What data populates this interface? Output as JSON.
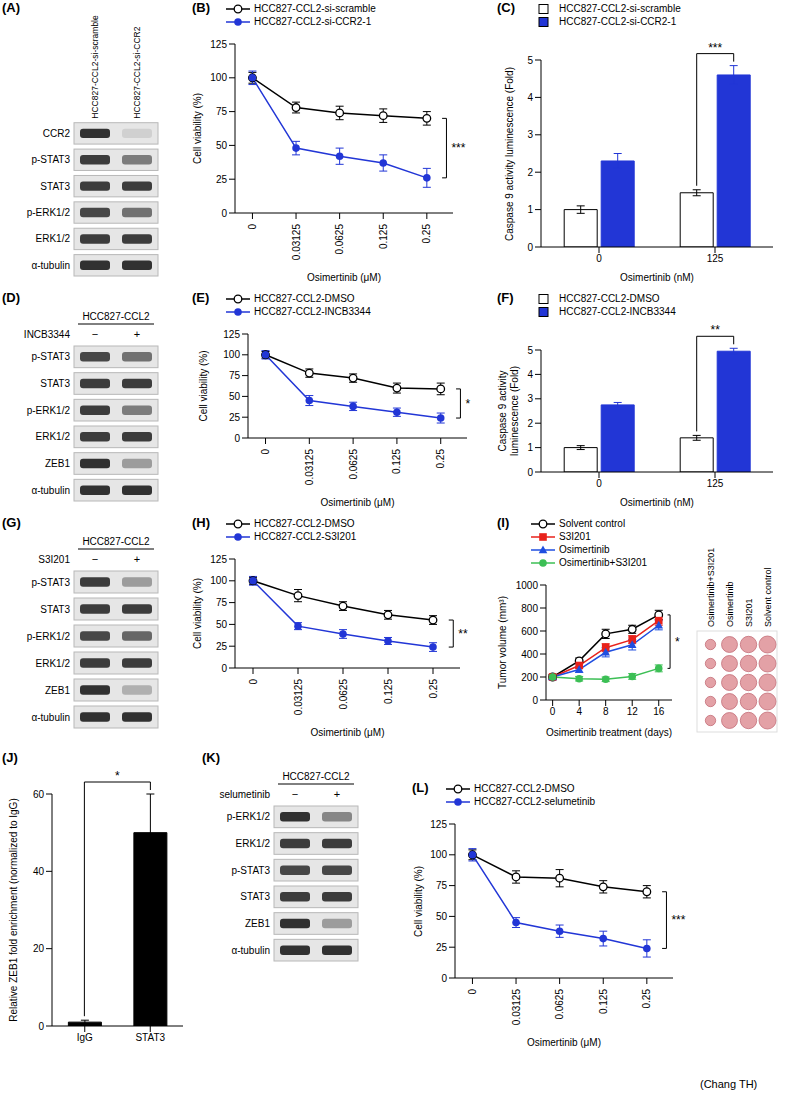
{
  "chart_data": [
    {
      "panel": "(A)",
      "type": "western_blot",
      "lanes": [
        "HCC827-CCL2-si-scramble",
        "HCC827-CCL2-si-CCR2"
      ],
      "rows": [
        {
          "label": "CCR2",
          "intensity": [
            0.85,
            0.1
          ]
        },
        {
          "label": "p-STAT3",
          "intensity": [
            0.8,
            0.5
          ]
        },
        {
          "label": "STAT3",
          "intensity": [
            0.8,
            0.8
          ]
        },
        {
          "label": "p-ERK1/2",
          "intensity": [
            0.75,
            0.55
          ]
        },
        {
          "label": "ERK1/2",
          "intensity": [
            0.8,
            0.8
          ]
        },
        {
          "label": "α-tubulin",
          "intensity": [
            0.85,
            0.85
          ]
        }
      ]
    },
    {
      "panel": "(B)",
      "type": "line",
      "x_label": "Osimertinib (μM)",
      "y_label": "Cell viability (%)",
      "categories": [
        "0",
        "0.03125",
        "0.0625",
        "0.125",
        "0.25"
      ],
      "ylim": [
        0,
        125
      ],
      "yticks": [
        0,
        25,
        50,
        75,
        100,
        125
      ],
      "legend": "top",
      "significance": "***",
      "series": [
        {
          "name": "HCC827-CCL2-si-scramble",
          "color": "#000000",
          "marker": "open_circle",
          "values": [
            100,
            78,
            74,
            72,
            70
          ],
          "errors": [
            4,
            4,
            5,
            5,
            5
          ]
        },
        {
          "name": "HCC827-CCL2-si-CCR2-1",
          "color": "#2236d6",
          "marker": "filled_circle",
          "values": [
            100,
            48,
            42,
            37,
            26
          ],
          "errors": [
            5,
            5,
            6,
            6,
            7
          ]
        }
      ]
    },
    {
      "panel": "(C)",
      "type": "bar",
      "x_label": "Osimertinib (nM)",
      "y_label": "Caspase 9 activity luminescence (Fold)",
      "categories": [
        "0",
        "125"
      ],
      "ylim": [
        0,
        5
      ],
      "yticks": [
        0,
        1,
        2,
        3,
        4,
        5
      ],
      "legend": "top",
      "significance": "***",
      "series": [
        {
          "name": "HCC827-CCL2-si-scramble",
          "color": "#ffffff",
          "values": [
            1.0,
            1.45
          ],
          "errors": [
            0.1,
            0.08
          ]
        },
        {
          "name": "HCC827-CCL2-si-CCR2-1",
          "color": "#2236d6",
          "values": [
            2.3,
            4.6
          ],
          "errors": [
            0.2,
            0.25
          ]
        }
      ]
    },
    {
      "panel": "(D)",
      "type": "western_blot",
      "header": "HCC827-CCL2",
      "treatment": "INCB3344",
      "lanes": [
        "−",
        "+"
      ],
      "rows": [
        {
          "label": "p-STAT3",
          "intensity": [
            0.75,
            0.55
          ]
        },
        {
          "label": "STAT3",
          "intensity": [
            0.8,
            0.8
          ]
        },
        {
          "label": "p-ERK1/2",
          "intensity": [
            0.8,
            0.5
          ]
        },
        {
          "label": "ERK1/2",
          "intensity": [
            0.8,
            0.8
          ]
        },
        {
          "label": "ZEB1",
          "intensity": [
            0.85,
            0.35
          ]
        },
        {
          "label": "α-tubulin",
          "intensity": [
            0.85,
            0.85
          ]
        }
      ]
    },
    {
      "panel": "(E)",
      "type": "line",
      "x_label": "Osimertinib (μM)",
      "y_label": "Cell viability (%)",
      "categories": [
        "0",
        "0.03125",
        "0.0625",
        "0.125",
        "0.25"
      ],
      "ylim": [
        0,
        125
      ],
      "yticks": [
        0,
        25,
        50,
        75,
        100,
        125
      ],
      "legend": "top",
      "significance": "*",
      "series": [
        {
          "name": "HCC827-CCL2-DMSO",
          "color": "#000000",
          "marker": "open_circle",
          "values": [
            100,
            78,
            72,
            60,
            59
          ],
          "errors": [
            4,
            5,
            5,
            6,
            7
          ]
        },
        {
          "name": "HCC827-CCL2-INCB3344",
          "color": "#2236d6",
          "marker": "filled_circle",
          "values": [
            100,
            45,
            38,
            31,
            24
          ],
          "errors": [
            5,
            6,
            5,
            5,
            6
          ]
        }
      ]
    },
    {
      "panel": "(F)",
      "type": "bar",
      "x_label": "Osimertinib (nM)",
      "y_label": "Caspase 9 activity luminescence (Fold)",
      "categories": [
        "0",
        "125"
      ],
      "ylim": [
        0,
        5
      ],
      "yticks": [
        0,
        1,
        2,
        3,
        4,
        5
      ],
      "legend": "top",
      "significance": "**",
      "series": [
        {
          "name": "HCC827-CCL2-DMSO",
          "color": "#ffffff",
          "values": [
            1.0,
            1.4
          ],
          "errors": [
            0.08,
            0.1
          ]
        },
        {
          "name": "HCC827-CCL2-INCB3344",
          "color": "#2236d6",
          "values": [
            2.75,
            4.95
          ],
          "errors": [
            0.1,
            0.12
          ]
        }
      ]
    },
    {
      "panel": "(G)",
      "type": "western_blot",
      "header": "HCC827-CCL2",
      "treatment": "S3I201",
      "lanes": [
        "−",
        "+"
      ],
      "rows": [
        {
          "label": "p-STAT3",
          "intensity": [
            0.8,
            0.35
          ]
        },
        {
          "label": "STAT3",
          "intensity": [
            0.8,
            0.8
          ]
        },
        {
          "label": "p-ERK1/2",
          "intensity": [
            0.75,
            0.6
          ]
        },
        {
          "label": "ERK1/2",
          "intensity": [
            0.8,
            0.8
          ]
        },
        {
          "label": "ZEB1",
          "intensity": [
            0.85,
            0.25
          ]
        },
        {
          "label": "α-tubulin",
          "intensity": [
            0.85,
            0.85
          ]
        }
      ]
    },
    {
      "panel": "(H)",
      "type": "line",
      "x_label": "Osimertinib (μM)",
      "y_label": "Cell viability (%)",
      "categories": [
        "0",
        "0.03125",
        "0.0625",
        "0.125",
        "0.25"
      ],
      "ylim": [
        0,
        125
      ],
      "yticks": [
        0,
        25,
        50,
        75,
        100,
        125
      ],
      "legend": "top",
      "significance": "**",
      "series": [
        {
          "name": "HCC827-CCL2-DMSO",
          "color": "#000000",
          "marker": "open_circle",
          "values": [
            100,
            83,
            71,
            61,
            55
          ],
          "errors": [
            4,
            7,
            5,
            5,
            5
          ]
        },
        {
          "name": "HCC827-CCL2-S3I201",
          "color": "#2236d6",
          "marker": "filled_circle",
          "values": [
            100,
            48,
            39,
            31,
            24
          ],
          "errors": [
            5,
            4,
            5,
            4,
            5
          ]
        }
      ]
    },
    {
      "panel": "(I)",
      "type": "line",
      "x_label": "Osimertinib treatment (days)",
      "y_label": "Tumor volume (mm³)",
      "x": [
        0,
        4,
        8,
        12,
        16
      ],
      "xlim": [
        -1,
        18
      ],
      "xticks": [
        0,
        4,
        8,
        12,
        16
      ],
      "ylim": [
        0,
        1000
      ],
      "yticks": [
        0,
        200,
        400,
        600,
        800,
        1000
      ],
      "legend": "top",
      "significance": "*",
      "photo_labels": [
        "Osimertinib+S3I201",
        "Osimertinib",
        "S3I201",
        "Solvent control"
      ],
      "series": [
        {
          "name": "Solvent control",
          "color": "#000000",
          "marker": "open_circle",
          "values": [
            200,
            340,
            575,
            615,
            740
          ],
          "errors": [
            20,
            25,
            40,
            35,
            40
          ]
        },
        {
          "name": "S3I201",
          "color": "#e8221b",
          "marker": "square",
          "values": [
            200,
            300,
            455,
            525,
            690
          ],
          "errors": [
            20,
            25,
            35,
            35,
            40
          ]
        },
        {
          "name": "Osimertinib",
          "color": "#1f4ee0",
          "marker": "triangle",
          "values": [
            200,
            265,
            415,
            480,
            650
          ],
          "errors": [
            20,
            25,
            40,
            45,
            40
          ]
        },
        {
          "name": "Osimertinib+S3I201",
          "color": "#3cbf55",
          "marker": "filled_circle",
          "values": [
            200,
            185,
            180,
            205,
            275
          ],
          "errors": [
            20,
            20,
            20,
            25,
            30
          ]
        }
      ]
    },
    {
      "panel": "(J)",
      "type": "bar",
      "y_label": "Relative ZEB1 fold enrichment (normalized to IgG)",
      "categories": [
        "IgG",
        "STAT3"
      ],
      "ylim": [
        0,
        60
      ],
      "yticks": [
        0,
        20,
        40,
        60
      ],
      "significance": "*",
      "series": [
        {
          "color": "#000000",
          "values": [
            1,
            50
          ],
          "errors": [
            0.5,
            10
          ]
        }
      ]
    },
    {
      "panel": "(K)",
      "type": "western_blot",
      "header": "HCC827-CCL2",
      "treatment": "selumetinib",
      "lanes": [
        "−",
        "+"
      ],
      "rows": [
        {
          "label": "p-ERK1/2",
          "intensity": [
            0.85,
            0.45
          ]
        },
        {
          "label": "ERK1/2",
          "intensity": [
            0.8,
            0.8
          ]
        },
        {
          "label": "p-STAT3",
          "intensity": [
            0.75,
            0.75
          ]
        },
        {
          "label": "STAT3",
          "intensity": [
            0.8,
            0.8
          ]
        },
        {
          "label": "ZEB1",
          "intensity": [
            0.85,
            0.35
          ]
        },
        {
          "label": "α-tubulin",
          "intensity": [
            0.85,
            0.85
          ]
        }
      ]
    },
    {
      "panel": "(L)",
      "type": "line",
      "x_label": "Osimertinib (μM)",
      "y_label": "Cell viability (%)",
      "categories": [
        "0",
        "0.03125",
        "0.0625",
        "0.125",
        "0.25"
      ],
      "ylim": [
        0,
        125
      ],
      "yticks": [
        0,
        25,
        50,
        75,
        100,
        125
      ],
      "legend": "top",
      "significance": "***",
      "series": [
        {
          "name": "HCC827-CCL2-DMSO",
          "color": "#000000",
          "marker": "open_circle",
          "values": [
            100,
            82,
            81,
            74,
            70
          ],
          "errors": [
            4,
            5,
            7,
            5,
            5
          ]
        },
        {
          "name": "HCC827-CCL2-selumetinib",
          "color": "#2236d6",
          "marker": "filled_circle",
          "values": [
            100,
            45,
            38,
            32,
            24
          ],
          "errors": [
            5,
            4,
            5,
            6,
            7
          ]
        }
      ]
    }
  ],
  "credit": "(Chang TH)"
}
